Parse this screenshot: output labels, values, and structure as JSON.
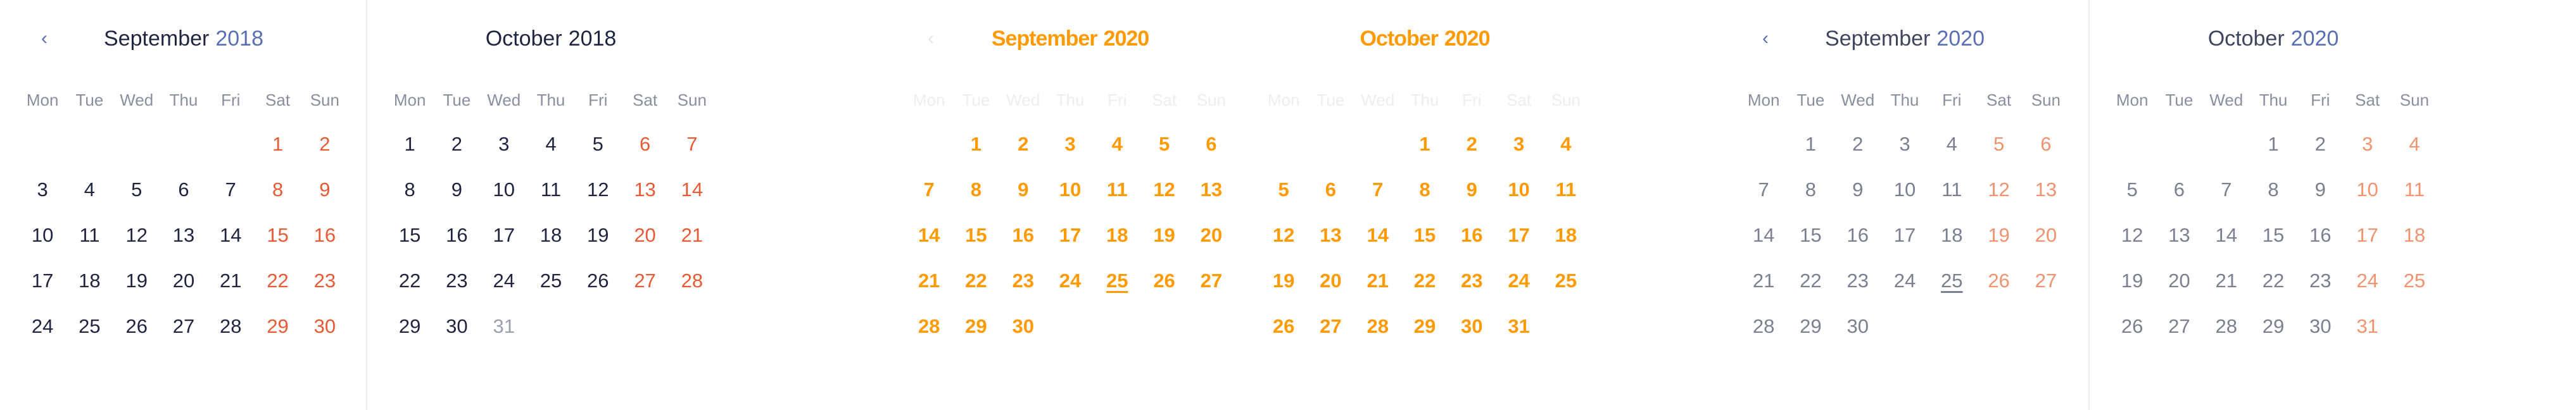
{
  "weekday_labels": [
    "Mon",
    "Tue",
    "Wed",
    "Thu",
    "Fri",
    "Sat",
    "Sun"
  ],
  "calendars": [
    {
      "prev_icon": "‹",
      "month": "September",
      "year": "2018",
      "weeks": [
        [
          "",
          "",
          "",
          "",
          "",
          "1",
          "2"
        ],
        [
          "3",
          "4",
          "5",
          "6",
          "7",
          "8",
          "9"
        ],
        [
          "10",
          "11",
          "12",
          "13",
          "14",
          "15",
          "16"
        ],
        [
          "17",
          "18",
          "19",
          "20",
          "21",
          "22",
          "23"
        ],
        [
          "24",
          "25",
          "26",
          "27",
          "28",
          "29",
          "30"
        ]
      ]
    },
    {
      "month": "October",
      "year": "2018",
      "weeks": [
        [
          "1",
          "2",
          "3",
          "4",
          "5",
          "6",
          "7"
        ],
        [
          "8",
          "9",
          "10",
          "11",
          "12",
          "13",
          "14"
        ],
        [
          "15",
          "16",
          "17",
          "18",
          "19",
          "20",
          "21"
        ],
        [
          "22",
          "23",
          "24",
          "25",
          "26",
          "27",
          "28"
        ],
        [
          "29",
          "30",
          "31",
          "",
          "",
          "",
          ""
        ]
      ]
    },
    {
      "prev_icon": "‹",
      "month": "September",
      "year": "2020",
      "weeks": [
        [
          "",
          "1",
          "2",
          "3",
          "4",
          "5",
          "6"
        ],
        [
          "7",
          "8",
          "9",
          "10",
          "11",
          "12",
          "13"
        ],
        [
          "14",
          "15",
          "16",
          "17",
          "18",
          "19",
          "20"
        ],
        [
          "21",
          "22",
          "23",
          "24",
          "25",
          "26",
          "27"
        ],
        [
          "28",
          "29",
          "30",
          "",
          "",
          "",
          ""
        ]
      ]
    },
    {
      "month": "October",
      "year": "2020",
      "weeks": [
        [
          "",
          "",
          "",
          "1",
          "2",
          "3",
          "4"
        ],
        [
          "5",
          "6",
          "7",
          "8",
          "9",
          "10",
          "11"
        ],
        [
          "12",
          "13",
          "14",
          "15",
          "16",
          "17",
          "18"
        ],
        [
          "19",
          "20",
          "21",
          "22",
          "23",
          "24",
          "25"
        ],
        [
          "26",
          "27",
          "28",
          "29",
          "30",
          "31",
          ""
        ]
      ]
    },
    {
      "prev_icon": "‹",
      "month": "September",
      "year": "2020",
      "weeks": [
        [
          "",
          "1",
          "2",
          "3",
          "4",
          "5",
          "6"
        ],
        [
          "7",
          "8",
          "9",
          "10",
          "11",
          "12",
          "13"
        ],
        [
          "14",
          "15",
          "16",
          "17",
          "18",
          "19",
          "20"
        ],
        [
          "21",
          "22",
          "23",
          "24",
          "25",
          "26",
          "27"
        ],
        [
          "28",
          "29",
          "30",
          "",
          "",
          "",
          ""
        ]
      ]
    },
    {
      "month": "October",
      "year": "2020",
      "weeks": [
        [
          "",
          "",
          "",
          "1",
          "2",
          "3",
          "4"
        ],
        [
          "5",
          "6",
          "7",
          "8",
          "9",
          "10",
          "11"
        ],
        [
          "12",
          "13",
          "14",
          "15",
          "16",
          "17",
          "18"
        ],
        [
          "19",
          "20",
          "21",
          "22",
          "23",
          "24",
          "25"
        ],
        [
          "26",
          "27",
          "28",
          "29",
          "30",
          "31",
          ""
        ]
      ]
    }
  ]
}
